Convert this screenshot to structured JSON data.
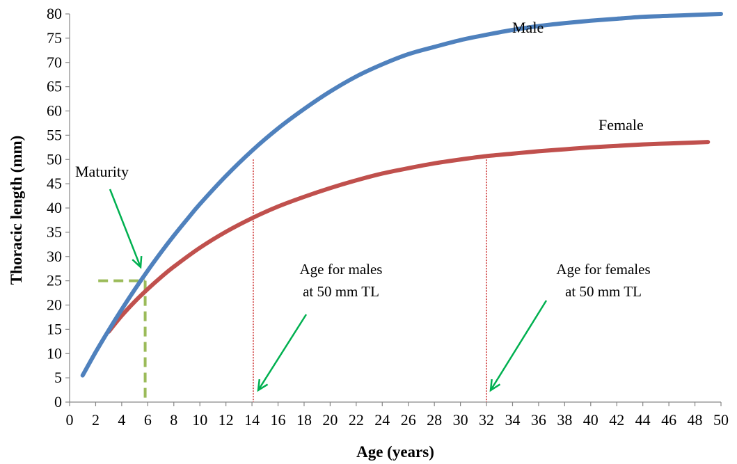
{
  "chart_data": {
    "type": "line",
    "xlabel": "Age (years)",
    "ylabel": "Thoracic length (mm)",
    "xlim": [
      0,
      50
    ],
    "ylim": [
      0,
      80
    ],
    "x_ticks": [
      0,
      2,
      4,
      6,
      8,
      10,
      12,
      14,
      16,
      18,
      20,
      22,
      24,
      26,
      28,
      30,
      32,
      34,
      36,
      38,
      40,
      42,
      44,
      46,
      48,
      50
    ],
    "y_ticks": [
      0,
      5,
      10,
      15,
      20,
      25,
      30,
      35,
      40,
      45,
      50,
      55,
      60,
      65,
      70,
      75,
      80
    ],
    "grid": false,
    "series": [
      {
        "name": "Male",
        "color": "#4F81BD",
        "x": [
          1,
          2,
          3,
          4,
          5,
          6,
          7,
          8,
          9,
          10,
          12,
          14,
          16,
          18,
          20,
          22,
          24,
          26,
          28,
          30,
          32,
          34,
          36,
          38,
          40,
          42,
          44,
          46,
          48,
          50
        ],
        "y": [
          5.5,
          10.3,
          14.8,
          19.1,
          23.2,
          27.1,
          30.8,
          34.3,
          37.6,
          40.8,
          46.6,
          51.8,
          56.4,
          60.4,
          64.0,
          67.1,
          69.6,
          71.7,
          73.2,
          74.6,
          75.7,
          76.7,
          77.5,
          78.1,
          78.6,
          79.0,
          79.4,
          79.6,
          79.8,
          80.0
        ]
      },
      {
        "name": "Female",
        "color": "#C0504D",
        "x": [
          3,
          4,
          5,
          6,
          7,
          8,
          10,
          12,
          14,
          16,
          18,
          20,
          22,
          24,
          26,
          28,
          30,
          32,
          34,
          36,
          38,
          40,
          42,
          44,
          46,
          48,
          49
        ],
        "y": [
          14.5,
          17.8,
          20.7,
          23.3,
          25.7,
          27.9,
          31.8,
          35.1,
          37.9,
          40.3,
          42.3,
          44.1,
          45.7,
          47.1,
          48.2,
          49.2,
          50.0,
          50.7,
          51.2,
          51.7,
          52.1,
          52.5,
          52.8,
          53.1,
          53.3,
          53.5,
          53.6
        ]
      }
    ],
    "reference_lines": [
      {
        "label": "Maturity",
        "x": 5.8,
        "y": 25,
        "color": "#9BBB59",
        "style": "dashed"
      },
      {
        "x": 14.1,
        "y": 50,
        "color": "#C00000",
        "style": "dotted"
      },
      {
        "x": 32,
        "y": 50,
        "color": "#C00000",
        "style": "dotted"
      }
    ],
    "annotations": [
      {
        "id": "male",
        "text": "Male"
      },
      {
        "id": "female",
        "text": "Female"
      },
      {
        "id": "maturity",
        "text": "Maturity"
      },
      {
        "id": "males_50",
        "lines": [
          "Age for males",
          "at 50 mm TL"
        ]
      },
      {
        "id": "females_50",
        "lines": [
          "Age for females",
          "at 50 mm TL"
        ]
      }
    ],
    "arrow_color": "#00B050"
  }
}
